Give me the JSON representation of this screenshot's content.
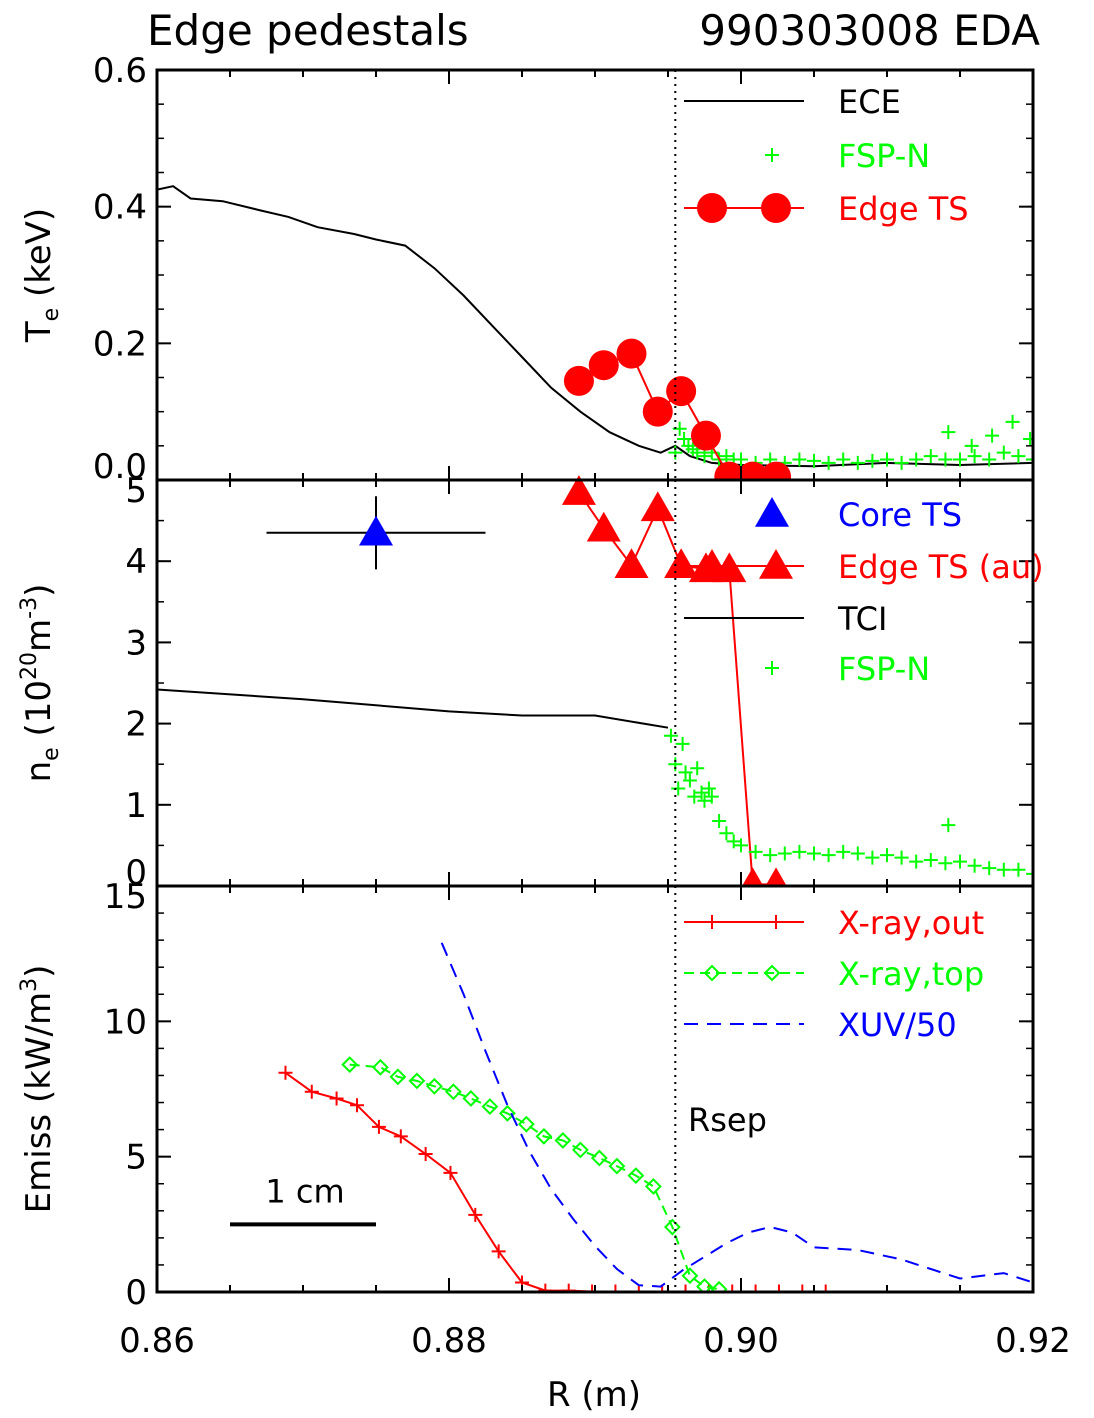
{
  "figure": {
    "title_left": "Edge pedestals",
    "title_right": "990303008 EDA",
    "x_label": "R (m)",
    "x_ticks": [
      "0.86",
      "0.88",
      "0.90",
      "0.92"
    ],
    "separatrix_label": "Rsep",
    "scale_bar_label": "1 cm"
  },
  "chart_data": [
    {
      "type": "line",
      "panel": "top",
      "ylabel_main": "T",
      "ylabel_sub": "e",
      "ylabel_unit": " (keV)",
      "xlim": [
        0.86,
        0.92
      ],
      "ylim": [
        0,
        0.6
      ],
      "y_ticks": [
        "0.0",
        "0.2",
        "0.4",
        "0.6"
      ],
      "grid": false,
      "legend_position": "top-right",
      "separatrix_R": 0.8955,
      "series": [
        {
          "name": "ECE",
          "style": "line",
          "color": "#000000",
          "x": [
            0.86,
            0.8611,
            0.8623,
            0.8645,
            0.867,
            0.869,
            0.871,
            0.8735,
            0.875,
            0.877,
            0.879,
            0.881,
            0.883,
            0.885,
            0.887,
            0.889,
            0.891,
            0.893,
            0.8945,
            0.8955,
            0.8965,
            0.898,
            0.9,
            0.905,
            0.91,
            0.915,
            0.92
          ],
          "y": [
            0.425,
            0.43,
            0.412,
            0.408,
            0.395,
            0.385,
            0.37,
            0.36,
            0.352,
            0.343,
            0.31,
            0.27,
            0.225,
            0.18,
            0.135,
            0.1,
            0.07,
            0.05,
            0.04,
            0.05,
            0.035,
            0.025,
            0.022,
            0.02,
            0.025,
            0.022,
            0.025
          ]
        },
        {
          "name": "FSP-N",
          "style": "plus",
          "color": "#00ff00",
          "x": [
            0.8955,
            0.8958,
            0.8961,
            0.8964,
            0.8967,
            0.897,
            0.8975,
            0.898,
            0.8985,
            0.899,
            0.8995,
            0.9,
            0.901,
            0.902,
            0.903,
            0.904,
            0.905,
            0.906,
            0.907,
            0.908,
            0.909,
            0.91,
            0.911,
            0.912,
            0.913,
            0.914,
            0.915,
            0.916,
            0.917,
            0.918,
            0.919,
            0.92,
            0.9142,
            0.9172,
            0.9186,
            0.9198,
            0.9158
          ],
          "y": [
            0.04,
            0.075,
            0.06,
            0.05,
            0.045,
            0.04,
            0.035,
            0.04,
            0.03,
            0.035,
            0.03,
            0.03,
            0.025,
            0.03,
            0.025,
            0.03,
            0.028,
            0.025,
            0.03,
            0.025,
            0.028,
            0.03,
            0.025,
            0.03,
            0.035,
            0.03,
            0.03,
            0.035,
            0.03,
            0.04,
            0.035,
            0.03,
            0.07,
            0.065,
            0.085,
            0.06,
            0.05
          ]
        },
        {
          "name": "Edge TS",
          "style": "line-circle",
          "color": "#ff0000",
          "x": [
            0.8889,
            0.8906,
            0.8925,
            0.8943,
            0.8959,
            0.8976,
            0.8992,
            0.9008,
            0.9024
          ],
          "y": [
            0.145,
            0.168,
            0.185,
            0.1,
            0.13,
            0.065,
            0.005,
            0.005,
            0.005
          ]
        }
      ]
    },
    {
      "type": "line",
      "panel": "middle",
      "ylabel_main": "n",
      "ylabel_sub": "e",
      "ylabel_unit_pre": " (10",
      "ylabel_unit_sup1": "20",
      "ylabel_unit_mid": "m",
      "ylabel_unit_sup2": "-3",
      "ylabel_unit_post": ")",
      "xlim": [
        0.86,
        0.92
      ],
      "ylim": [
        0,
        5
      ],
      "y_ticks": [
        "0",
        "1",
        "2",
        "3",
        "4",
        "5"
      ],
      "grid": false,
      "legend_position": "top-right",
      "separatrix_R": 0.8955,
      "series": [
        {
          "name": "Core TS",
          "style": "triangle-errorbar",
          "color": "#0000ff",
          "x": [
            0.875
          ],
          "y": [
            4.35
          ],
          "xerr": [
            0.0075
          ],
          "yerr": [
            0.45
          ]
        },
        {
          "name": "Edge TS (au)",
          "style": "line-triangle",
          "color": "#ff0000",
          "x": [
            0.8889,
            0.8906,
            0.8925,
            0.8943,
            0.8959,
            0.8976,
            0.8992,
            0.9008,
            0.9024
          ],
          "y": [
            4.85,
            4.4,
            3.95,
            4.65,
            3.95,
            3.9,
            3.9,
            0.02,
            0.02
          ]
        },
        {
          "name": "TCI",
          "style": "line",
          "color": "#000000",
          "x": [
            0.86,
            0.87,
            0.88,
            0.885,
            0.89,
            0.895
          ],
          "y": [
            2.42,
            2.3,
            2.15,
            2.1,
            2.1,
            1.95
          ]
        },
        {
          "name": "FSP-N",
          "style": "plus",
          "color": "#00ff00",
          "x": [
            0.8952,
            0.8955,
            0.8957,
            0.896,
            0.8962,
            0.8965,
            0.8968,
            0.897,
            0.8973,
            0.8975,
            0.8978,
            0.898,
            0.8985,
            0.899,
            0.8995,
            0.9,
            0.901,
            0.902,
            0.903,
            0.904,
            0.905,
            0.906,
            0.907,
            0.908,
            0.909,
            0.91,
            0.911,
            0.912,
            0.913,
            0.914,
            0.915,
            0.916,
            0.917,
            0.918,
            0.919,
            0.92,
            0.9142
          ],
          "y": [
            1.85,
            1.5,
            1.2,
            1.75,
            1.4,
            1.3,
            1.1,
            1.45,
            1.15,
            1.05,
            1.2,
            1.1,
            0.8,
            0.65,
            0.55,
            0.5,
            0.42,
            0.38,
            0.4,
            0.42,
            0.4,
            0.38,
            0.42,
            0.4,
            0.35,
            0.38,
            0.35,
            0.3,
            0.32,
            0.28,
            0.3,
            0.25,
            0.22,
            0.2,
            0.2,
            0.15,
            0.75
          ]
        }
      ]
    },
    {
      "type": "line",
      "panel": "bottom",
      "ylabel_main": "Emiss (kW/m",
      "ylabel_sup": "3",
      "ylabel_post": ")",
      "xlim": [
        0.86,
        0.92
      ],
      "ylim": [
        0,
        15
      ],
      "y_ticks": [
        "0",
        "5",
        "10",
        "15"
      ],
      "grid": false,
      "legend_position": "top-right",
      "separatrix_R": 0.8955,
      "scale_bar": {
        "x_start": 0.865,
        "x_end": 0.875,
        "y": 2.5
      },
      "series": [
        {
          "name": "X-ray,out",
          "style": "line-plus",
          "color": "#ff0000",
          "x": [
            0.8688,
            0.8706,
            0.8723,
            0.8737,
            0.8752,
            0.8767,
            0.8784,
            0.8801,
            0.8818,
            0.8834,
            0.885,
            0.8866,
            0.8882,
            0.8898,
            0.8914,
            0.893,
            0.8946,
            0.8962,
            0.8978,
            0.8994,
            0.901,
            0.9026,
            0.9042,
            0.9058
          ],
          "y": [
            8.1,
            7.4,
            7.15,
            6.9,
            6.1,
            5.75,
            5.1,
            4.4,
            2.85,
            1.5,
            0.35,
            0.05,
            0.05,
            0.02,
            0.02,
            0.02,
            0.02,
            0.02,
            0.02,
            0.02,
            0.02,
            0.02,
            0.02,
            0.02
          ]
        },
        {
          "name": "X-ray,top",
          "style": "dashed-diamond",
          "color": "#00ff00",
          "x": [
            0.8732,
            0.8753,
            0.8765,
            0.8778,
            0.879,
            0.8803,
            0.8815,
            0.8828,
            0.884,
            0.8853,
            0.8865,
            0.8878,
            0.889,
            0.8903,
            0.8915,
            0.8928,
            0.894,
            0.8953,
            0.8965,
            0.8975,
            0.8985
          ],
          "y": [
            8.4,
            8.3,
            7.95,
            7.8,
            7.6,
            7.4,
            7.15,
            6.85,
            6.6,
            6.2,
            5.75,
            5.6,
            5.25,
            4.95,
            4.65,
            4.3,
            3.9,
            2.4,
            0.6,
            0.2,
            0.1
          ]
        },
        {
          "name": "XUV/50",
          "style": "dashed",
          "color": "#0000ff",
          "x": [
            0.8795,
            0.881,
            0.8825,
            0.884,
            0.8855,
            0.887,
            0.8885,
            0.89,
            0.8915,
            0.893,
            0.8945,
            0.896,
            0.8975,
            0.899,
            0.9005,
            0.902,
            0.9035,
            0.905,
            0.908,
            0.911,
            0.913,
            0.915,
            0.918,
            0.92
          ],
          "y": [
            12.9,
            11.0,
            8.9,
            6.9,
            5.2,
            3.8,
            2.7,
            1.7,
            0.85,
            0.25,
            0.2,
            0.8,
            1.3,
            1.8,
            2.2,
            2.4,
            2.2,
            1.65,
            1.55,
            1.2,
            0.85,
            0.5,
            0.7,
            0.35
          ]
        }
      ]
    }
  ]
}
